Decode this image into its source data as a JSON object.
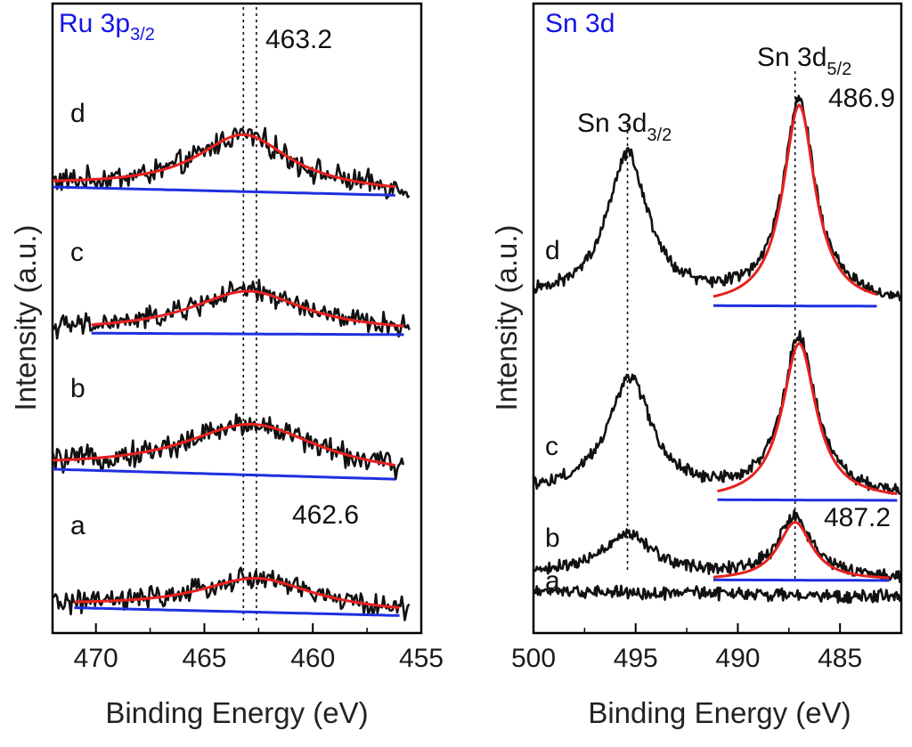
{
  "colors": {
    "raw": "#111111",
    "fit": "#e8211f",
    "baseline": "#1f2fe0",
    "panel_title": "#1414e6",
    "frame": "#000000"
  },
  "chart_data": [
    {
      "type": "line",
      "title": "Ru 3p",
      "title_sub": "3/2",
      "xlabel": "Binding Energy (eV)",
      "ylabel": "Intensity (a.u.)",
      "xlim": [
        472,
        455
      ],
      "xticks": [
        470,
        465,
        460,
        455
      ],
      "reference_lines": [
        463.2,
        462.6
      ],
      "annotations": [
        {
          "text": "463.2",
          "x": 463.2
        },
        {
          "text": "462.6",
          "x": 462.6
        }
      ],
      "series": [
        {
          "name": "d",
          "raw_x": [
            472,
            455.5
          ],
          "fit_range": [
            472,
            456.2
          ],
          "peak_center": 463.2,
          "peak_height": 0.62,
          "peak_width": 2.6,
          "baseline_start": 0.0,
          "baseline_end": -0.1,
          "offset": 3.0,
          "noise": 0.11
        },
        {
          "name": "c",
          "raw_x": [
            472,
            455.5
          ],
          "fit_range": [
            470.2,
            455.8
          ],
          "peak_center": 463.0,
          "peak_height": 0.46,
          "peak_width": 3.2,
          "baseline_start": 0.0,
          "baseline_end": -0.02,
          "offset": 2.0,
          "noise": 0.1
        },
        {
          "name": "b",
          "raw_x": [
            472,
            455.8
          ],
          "fit_range": [
            472,
            456.2
          ],
          "peak_center": 462.8,
          "peak_height": 0.55,
          "peak_width": 3.8,
          "baseline_start": 0.0,
          "baseline_end": -0.12,
          "offset": 1.0,
          "noise": 0.11
        },
        {
          "name": "a",
          "raw_x": [
            472,
            455.5
          ],
          "fit_range": [
            471.0,
            456.0
          ],
          "peak_center": 462.6,
          "peak_height": 0.36,
          "peak_width": 3.2,
          "baseline_start": 0.0,
          "baseline_end": -0.1,
          "offset": 0.0,
          "noise": 0.1
        }
      ]
    },
    {
      "type": "line",
      "title": "Sn 3d",
      "title_sub": "",
      "xlabel": "Binding Energy (eV)",
      "ylabel": "Intensity (a.u.)",
      "xlim": [
        500,
        482
      ],
      "xticks": [
        500,
        495,
        490,
        485
      ],
      "reference_lines": [
        495.4,
        487.2
      ],
      "annotations": [
        {
          "text": "Sn 3d",
          "sub": "5/2",
          "x": 487.0
        },
        {
          "text": "486.9",
          "x": 486.9
        },
        {
          "text": "Sn 3d",
          "sub": "3/2",
          "x": 495.4
        },
        {
          "text": "487.2",
          "x": 487.2
        }
      ],
      "series": [
        {
          "name": "d",
          "raw_x": [
            500,
            482
          ],
          "fit_range": [
            491.2,
            483.2
          ],
          "peaks": [
            {
              "center": 495.4,
              "height": 0.72,
              "width": 1.2
            },
            {
              "center": 487.0,
              "height": 1.0,
              "width": 0.95
            }
          ],
          "offset": 3.0,
          "noise": 0.025
        },
        {
          "name": "c",
          "raw_x": [
            500,
            482
          ],
          "fit_range": [
            491.0,
            482.2
          ],
          "peaks": [
            {
              "center": 495.3,
              "height": 0.57,
              "width": 1.3
            },
            {
              "center": 487.0,
              "height": 0.78,
              "width": 1.0
            }
          ],
          "offset": 1.85,
          "noise": 0.025
        },
        {
          "name": "b",
          "raw_x": [
            500,
            482
          ],
          "fit_range": [
            491.2,
            482.6
          ],
          "peaks": [
            {
              "center": 495.4,
              "height": 0.2,
              "width": 1.4
            },
            {
              "center": 487.2,
              "height": 0.29,
              "width": 1.0
            }
          ],
          "offset": 0.95,
          "noise": 0.025
        },
        {
          "name": "a",
          "raw_x": [
            500,
            482
          ],
          "fit_range": null,
          "peaks": [],
          "offset": 0.72,
          "noise": 0.025
        }
      ]
    }
  ]
}
